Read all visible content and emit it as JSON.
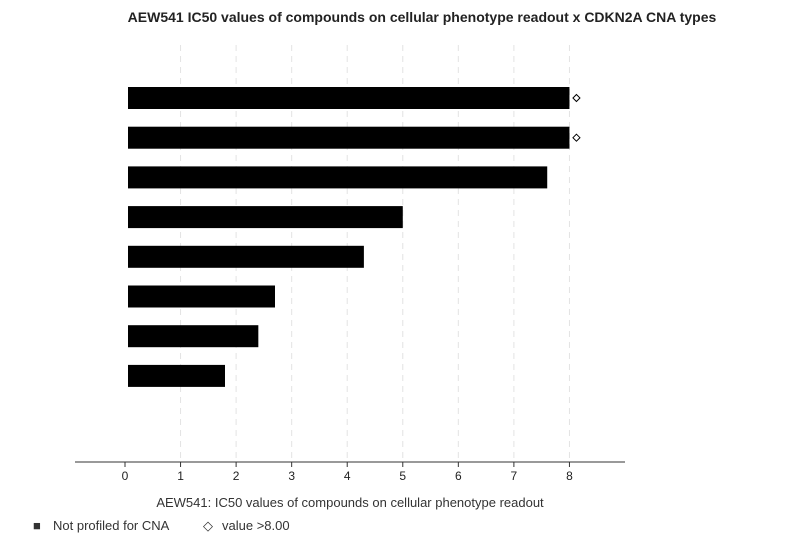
{
  "chart_data": {
    "type": "bar",
    "orientation": "horizontal",
    "title": "AEW541 IC50 values of compounds on cellular phenotype readout x CDKN2A CNA types",
    "xlabel": "AEW541: IC50 values of compounds on cellular phenotype readout",
    "ylabel": "",
    "xlim": [
      -0.9,
      9.0
    ],
    "xticks": [
      "0",
      "1",
      "2",
      "3",
      "4",
      "5",
      "6",
      "7",
      "8"
    ],
    "grid": "vertical dashed",
    "bar_color": "#000000",
    "values": [
      8.0,
      8.0,
      7.6,
      5.0,
      4.3,
      2.7,
      2.4,
      1.8
    ],
    "capped": [
      true,
      true,
      false,
      false,
      false,
      false,
      false,
      false
    ],
    "legend_position": "bottom-left",
    "legend": [
      {
        "symbol": "■",
        "label": "Not profiled for CNA"
      },
      {
        "symbol": "◇",
        "label": "value >8.00"
      }
    ]
  }
}
